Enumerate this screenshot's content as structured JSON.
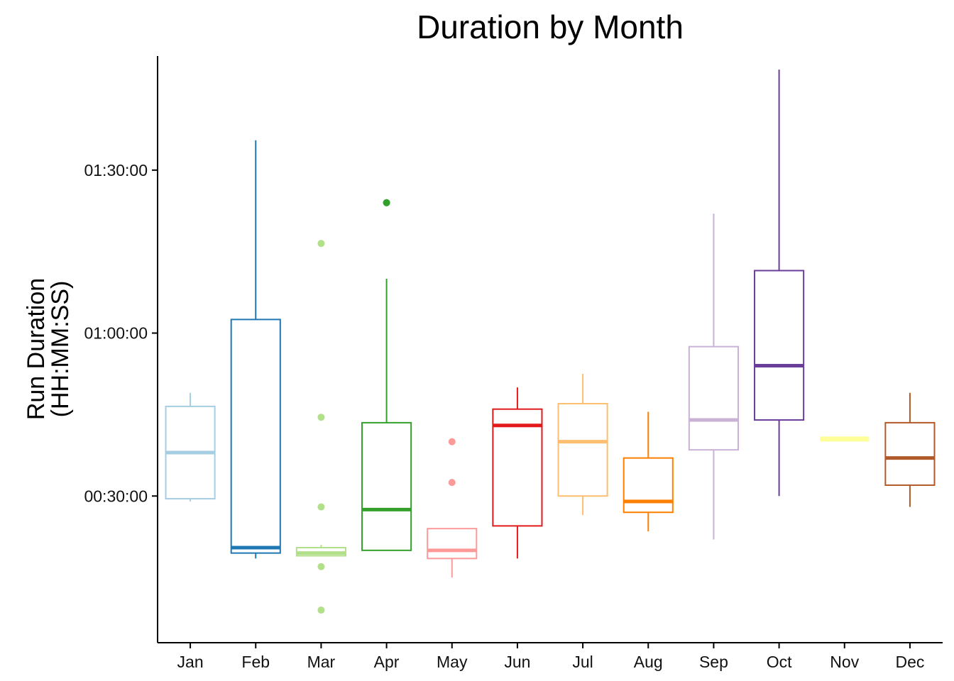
{
  "chart_data": {
    "type": "box",
    "title": "Duration by Month",
    "ylabel_lines": [
      "Run Duration",
      "(HH:MM:SS)"
    ],
    "xlabel": "",
    "y_unit": "minutes",
    "ylim_minutes": [
      3,
      111
    ],
    "y_ticks": [
      {
        "minutes": 30,
        "label": "00:30:00"
      },
      {
        "minutes": 60,
        "label": "01:00:00"
      },
      {
        "minutes": 90,
        "label": "01:30:00"
      }
    ],
    "grid": false,
    "legend": "none",
    "categories": [
      "Jan",
      "Feb",
      "Mar",
      "Apr",
      "May",
      "Jun",
      "Jul",
      "Aug",
      "Sep",
      "Oct",
      "Nov",
      "Dec"
    ],
    "series": [
      {
        "month": "Jan",
        "color": "#a6cee3",
        "whisker_low": 29,
        "q1": 29.5,
        "median": 38,
        "q3": 46.5,
        "whisker_high": 49,
        "outliers": []
      },
      {
        "month": "Feb",
        "color": "#1f78b4",
        "whisker_low": 18.5,
        "q1": 19.5,
        "median": 20.5,
        "q3": 62.5,
        "whisker_high": 95.5,
        "outliers": []
      },
      {
        "month": "Mar",
        "color": "#b2df8a",
        "whisker_low": 19,
        "q1": 19,
        "median": 19.5,
        "q3": 20.5,
        "whisker_high": 21,
        "outliers": [
          76.5,
          44.5,
          28,
          17,
          9
        ]
      },
      {
        "month": "Apr",
        "color": "#33a02c",
        "whisker_low": 20,
        "q1": 20,
        "median": 27.5,
        "q3": 43.5,
        "whisker_high": 70,
        "outliers": [
          84,
          84
        ]
      },
      {
        "month": "May",
        "color": "#fb9a99",
        "whisker_low": 15,
        "q1": 18.5,
        "median": 20,
        "q3": 24,
        "whisker_high": 24,
        "outliers": [
          40,
          32.5
        ]
      },
      {
        "month": "Jun",
        "color": "#e31a1c",
        "whisker_low": 18.5,
        "q1": 24.5,
        "median": 43,
        "q3": 46,
        "whisker_high": 50,
        "outliers": []
      },
      {
        "month": "Jul",
        "color": "#fdbf6f",
        "whisker_low": 26.5,
        "q1": 30,
        "median": 40,
        "q3": 47,
        "whisker_high": 52.5,
        "outliers": []
      },
      {
        "month": "Aug",
        "color": "#ff7f00",
        "whisker_low": 23.5,
        "q1": 27,
        "median": 29,
        "q3": 37,
        "whisker_high": 45.5,
        "outliers": []
      },
      {
        "month": "Sep",
        "color": "#cab2d6",
        "whisker_low": 22,
        "q1": 38.5,
        "median": 44,
        "q3": 57.5,
        "whisker_high": 82,
        "outliers": []
      },
      {
        "month": "Oct",
        "color": "#6a3d9a",
        "whisker_low": 30,
        "q1": 44,
        "median": 54,
        "q3": 71.5,
        "whisker_high": 108.5,
        "outliers": []
      },
      {
        "month": "Nov",
        "color": "#ffff99",
        "whisker_low": 40.5,
        "q1": 40.5,
        "median": 40.5,
        "q3": 40.5,
        "whisker_high": 40.5,
        "outliers": []
      },
      {
        "month": "Dec",
        "color": "#b15928",
        "whisker_low": 28,
        "q1": 32,
        "median": 37,
        "q3": 43.5,
        "whisker_high": 49,
        "outliers": []
      }
    ]
  }
}
